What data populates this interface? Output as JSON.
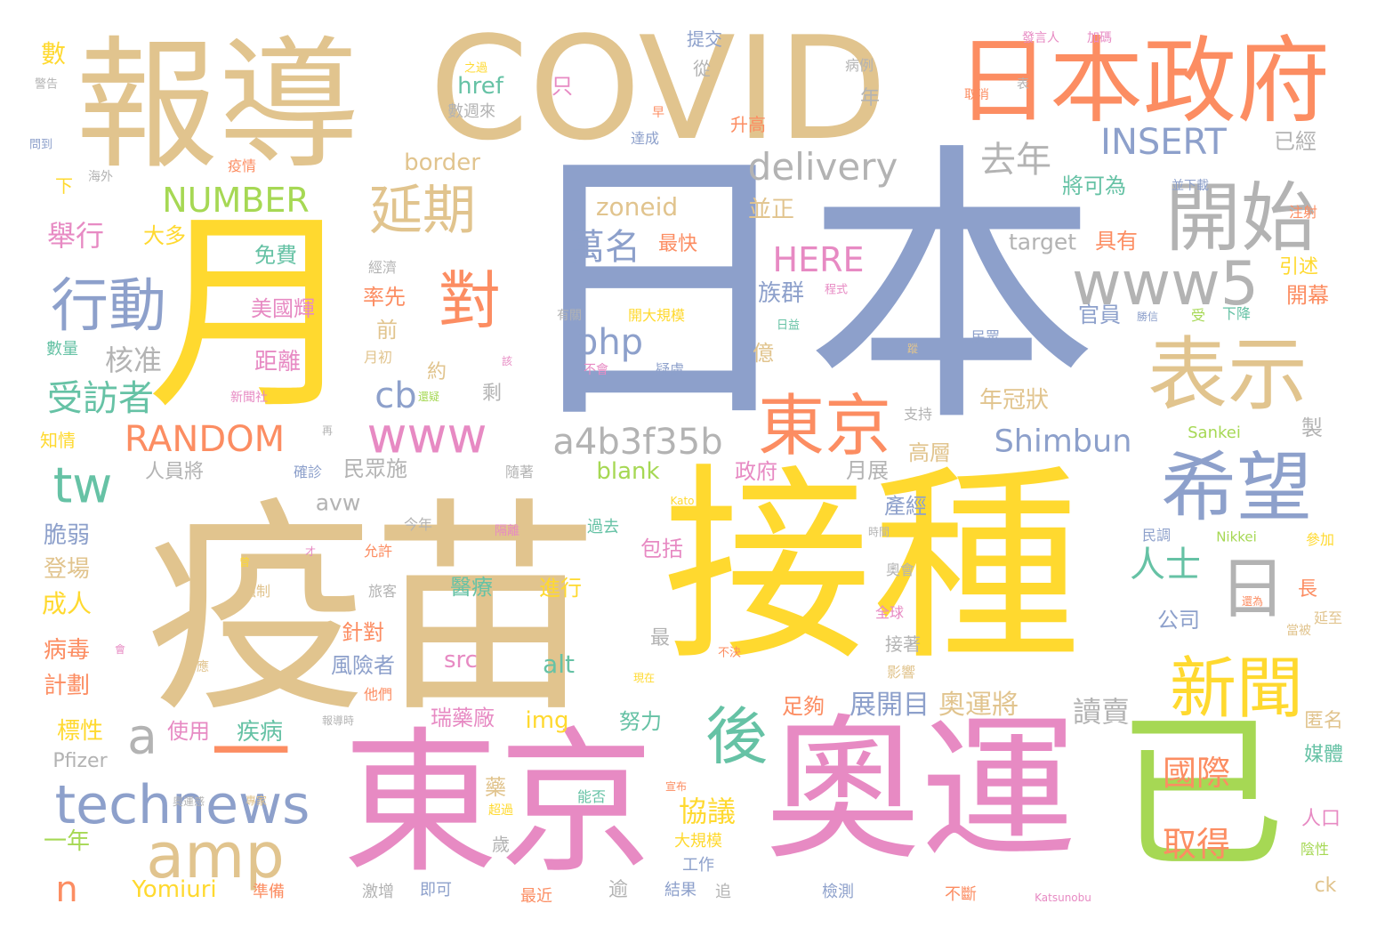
{
  "colors": {
    "tan": "#e1c48e",
    "blue": "#8da0cb",
    "yellow": "#ffd92f",
    "pink": "#e78ac3",
    "orange": "#fc8d62",
    "green": "#66c2a5",
    "lime": "#a6d854",
    "gray": "#b3b3b3",
    "background": "#ffffff"
  },
  "words": {
    "w_riben": "日本",
    "w_yimiao": "疫苗",
    "w_jiezhong": "接種",
    "w_dongjing_big": "東京",
    "w_aoyun": "奧運",
    "w_covid": "COVID",
    "w_baodao": "報導",
    "w_yue": "月",
    "w_yi": "已",
    "w_ribenzhengfu": "日本政府",
    "w_kaishi": "開始",
    "w_biaoshi": "表示",
    "w_xiwang": "希望",
    "w_dongjing": "東京",
    "w_xinwen": "新聞",
    "w_technews": "technews",
    "w_amp": "amp",
    "w_www5": "www5",
    "w_dui": "對",
    "w_hou": "後",
    "w_ri": "日",
    "w_yiheng": "一",
    "w_xingdong": "行動",
    "w_yanqi": "延期",
    "w_www": "www",
    "w_a4b": "a4b3f35b",
    "w_delivery": "delivery",
    "w_random": "RANDOM",
    "w_number": "NUMBER",
    "w_insert": "INSERT",
    "w_php": "php",
    "w_tw": "tw",
    "w_shimbun": "Shimbun",
    "w_cb": "cb",
    "w_a": "a",
    "w_n": "n",
    "w_wanming": "萬名",
    "w_qunian": "去年",
    "w_shoufangzhe": "受訪者",
    "w_renshi": "人士",
    "w_juxing": "舉行",
    "w_hezhun": "核准",
    "w_here": "HERE",
    "w_zoneid": "zoneid",
    "w_border": "border",
    "w_guoji": "國際",
    "w_qude": "取得",
    "w_duchai": "讀賣",
    "w_xieyi": "協議",
    "w_aoyunjiang": "奧運將",
    "w_zhankaimu": "展開目",
    "w_target": "target",
    "w_href": "href",
    "w_blank": "blank",
    "w_avw": "avw",
    "w_yomiuri": "Yomiuri",
    "w_pfizer": "Pfizer",
    "w_src": "src",
    "w_alt": "alt",
    "w_img": "img",
    "w_ck": "ck",
    "w_sankei": "Sankei",
    "w_nikkei": "Nikkei",
    "w_kato": "Kato",
    "w_katsunobu": "Katsunobu",
    "w_bingdu": "病毒",
    "w_jihua": "計劃",
    "w_chengren": "成人",
    "w_dengchang": "登場",
    "w_cuiruo": "脆弱",
    "w_biaoxing": "標性",
    "w_yinian": "一年",
    "w_zhiqing": "知情",
    "w_shuliang": "數量",
    "w_shu": "數",
    "w_jinggao": "警告",
    "w_wendao": "問到",
    "w_xia": "下",
    "w_haiwai": "海外",
    "w_yiqing": "疫情",
    "w_daduo": "大多",
    "w_mianfei": "免費",
    "w_meiguohui": "美國輝",
    "w_juli": "距離",
    "w_qian": "前",
    "w_shuaixian": "率先",
    "w_jingji": "經濟",
    "w_yuechu": "月初",
    "w_xinwenshe": "新聞社",
    "w_minzhongshi": "民眾施",
    "w_renyuanjiang": "人員將",
    "w_quezhen": "確診",
    "w_suizhe": "隨著",
    "w_zhengfu": "政府",
    "w_yuezhan": "月展",
    "w_gaoceng": "高層",
    "w_chanjing": "產經",
    "w_nianguanzhuang": "年冠狀",
    "w_zuqun": "族群",
    "w_yi_hundred": "億",
    "w_yue_about": "約",
    "w_sheng": "剩",
    "w_bingzheng": "並正",
    "w_zuikuai": "最快",
    "w_zhi": "只",
    "w_shujiaolai": "數週來",
    "w_zhiguo": "之過",
    "w_tijiao": "提交",
    "w_cong": "從",
    "w_bingli": "病例",
    "w_nian": "年",
    "w_fayanren": "發言人",
    "w_jiama": "加碼",
    "w_quxiao": "取消",
    "w_biao": "表",
    "w_zao": "早",
    "w_shenggao": "升高",
    "w_dacheng": "達成",
    "w_yijing": "已經",
    "w_jiangkewei": "將可為",
    "w_bingxiazai": "並下載",
    "w_zhushe": "注射",
    "w_juyou": "具有",
    "w_yinshu": "引述",
    "w_kaimu": "開幕",
    "w_chengshi": "程式",
    "w_guanyuan": "官員",
    "w_jianxin": "勝信",
    "w_shou": "受",
    "w_xiajiang": "下降",
    "w_rijiao": "日益",
    "w_minzhong": "民眾",
    "w_youguan": "有關",
    "w_kaidaguimo": "開大規模",
    "w_buhui": "不會",
    "w_yilv": "疑慮",
    "w_gai": "該",
    "w_huanyi": "還疑",
    "w_zai": "再",
    "w_zhichi": "支持",
    "w_zhi2": "製",
    "w_jinnian": "今年",
    "w_geli": "隔離",
    "w_guoqu": "過去",
    "w_shijian": "時間",
    "w_minjiao": "民調",
    "w_canjia": "參加",
    "w_yunxu": "允許",
    "w_qiangzhi": "強制",
    "w_lvke": "旅客",
    "w_yiliao": "醫療",
    "w_jinxing": "進行",
    "w_baokuo": "包括",
    "w_aohui": "奧會",
    "w_quanqiu": "全球",
    "w_gongsi": "公司",
    "w_huanwei": "還為",
    "w_chang": "長",
    "w_yanzhi": "延至",
    "w_dangbei": "當被",
    "w_hui": "會",
    "w_ying": "應",
    "w_zhenduei": "針對",
    "w_fengxianzhe": "風險者",
    "w_zui": "最",
    "w_jiezhu": "接著",
    "w_bujue": "不決",
    "w_xianzai": "現在",
    "w_yingxiang": "影響",
    "w_tamen": "他們",
    "w_ruiyaochang": "瑞藥廠",
    "w_zugou": "足夠",
    "w_nuli": "努力",
    "w_shiyong": "使用",
    "w_jibing": "疾病",
    "w_baodaoshi": "報導時",
    "w_niming": "匿名",
    "w_meiti": "媒體",
    "w_renkou": "人口",
    "w_yao": "藥",
    "w_xuanbu": "宣布",
    "w_nengfou": "能否",
    "w_chaoguo": "超過",
    "w_sui": "歲",
    "w_daguimo": "大規模",
    "w_gongzuo": "工作",
    "w_zhunbei": "準備",
    "w_jizeng": "激增",
    "w_jike": "即可",
    "w_zuijin": "最近",
    "w_yu": "逾",
    "w_jieguo": "結果",
    "w_zhui": "追",
    "w_jiance": "檢測",
    "w_buduan": "不斷",
    "w_yinxing": "陰性",
    "w_aoyunjing": "奧運感",
    "w_zhuanjia": "專家",
    "w_jing": "曾",
    "w_o": "才",
    "w_xiao": "蹤"
  }
}
